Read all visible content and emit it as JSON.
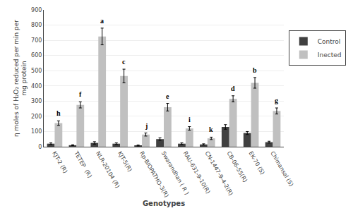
{
  "chart_data": {
    "type": "bar",
    "categories": [
      "KJT-2 (R)",
      "TETEP  (R)",
      "NLR-20104 (R)",
      "KJT-5(R)",
      "Rp-BIOPATHO-3(R)",
      "Swarandhan ( R )",
      "RAU-631-9-10(R)",
      "CN-1447-9-4-2(R)",
      "CB-06-55(R)",
      "EK-70 (S)",
      "Chimansal (S)"
    ],
    "series": [
      {
        "name": "Control",
        "color": "#404040",
        "values": [
          20,
          10,
          25,
          20,
          8,
          50,
          20,
          15,
          130,
          90,
          30
        ],
        "errors": [
          5,
          3,
          8,
          5,
          3,
          8,
          5,
          4,
          15,
          10,
          6
        ]
      },
      {
        "name": "Inected",
        "color": "#c0c0c0",
        "values": [
          155,
          275,
          725,
          465,
          80,
          260,
          120,
          55,
          315,
          420,
          235
        ],
        "errors": [
          15,
          20,
          55,
          45,
          10,
          25,
          12,
          8,
          20,
          35,
          20
        ],
        "annotations": [
          "h",
          "f",
          "a",
          "c",
          "j",
          "e",
          "i",
          "k",
          "d",
          "b",
          "g"
        ]
      }
    ],
    "xlabel": "Genotypes",
    "ylabel": "η moles of H₂O₂ reduced per min per\nmg protein",
    "ylim": [
      0,
      900
    ],
    "yticks": [
      0,
      100,
      200,
      300,
      400,
      500,
      600,
      700,
      800,
      900
    ],
    "grid": true,
    "legend": "right"
  }
}
